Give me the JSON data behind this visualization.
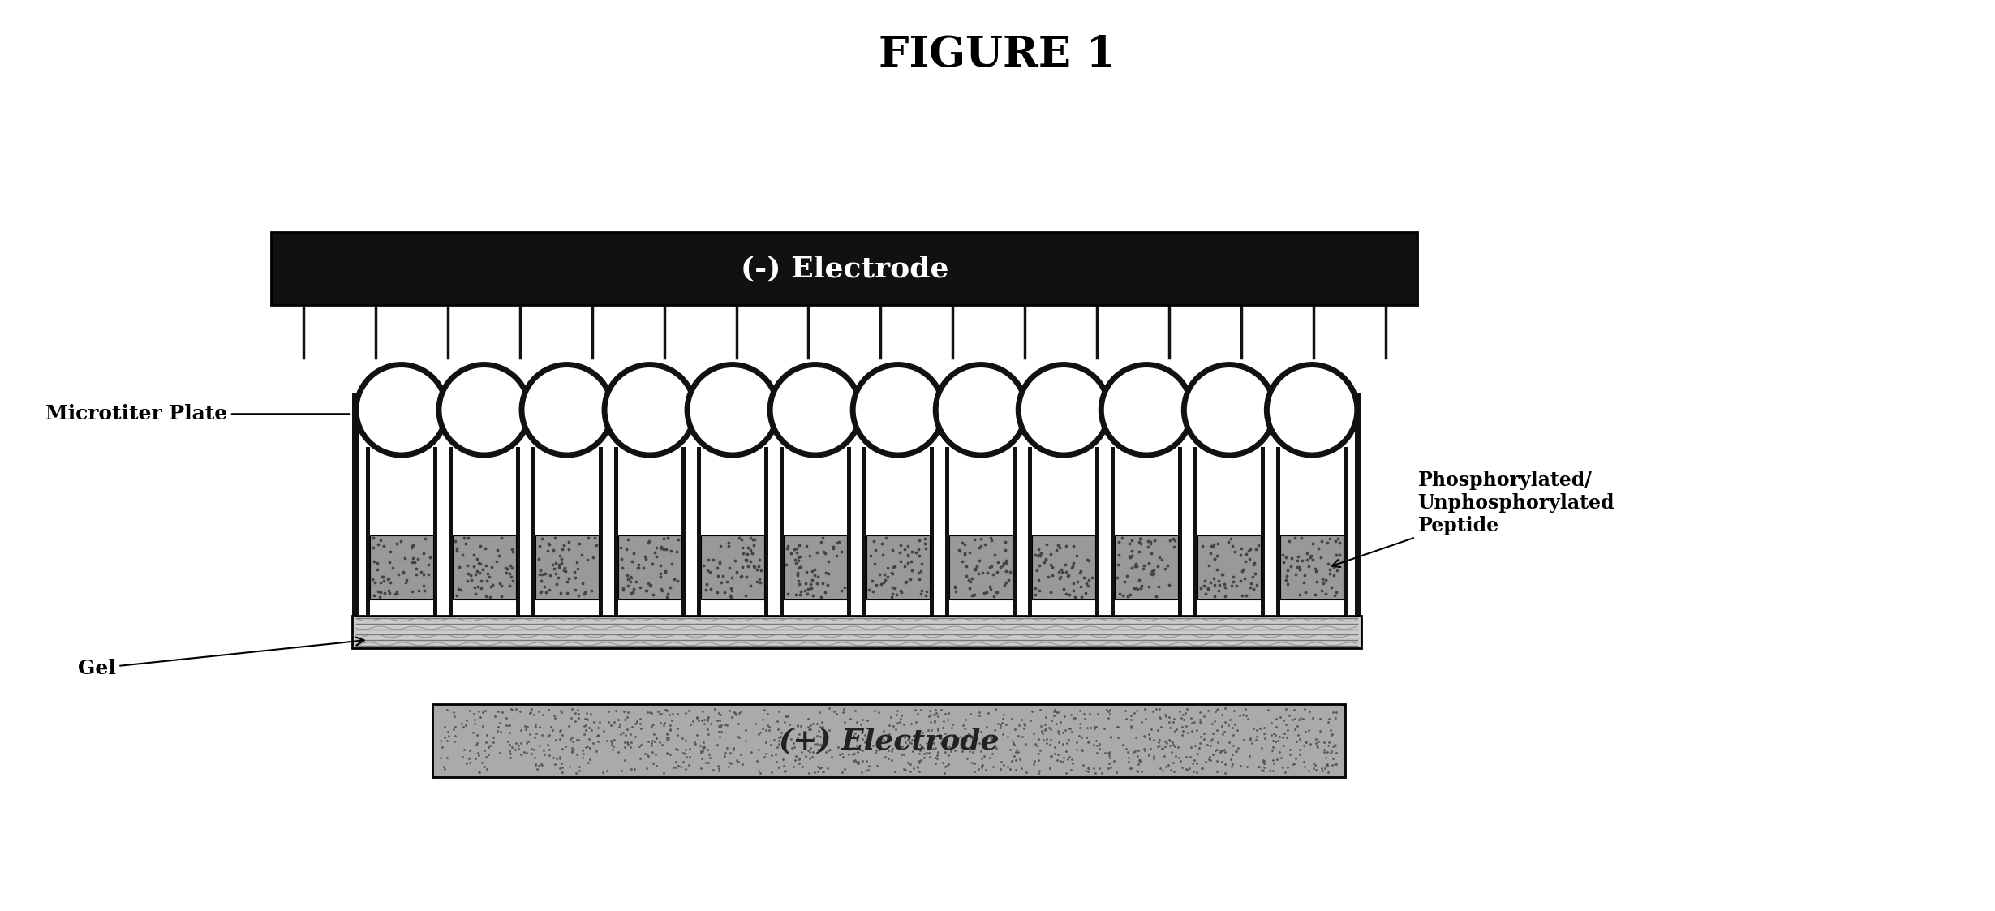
{
  "title": "FIGURE 1",
  "title_fontsize": 38,
  "title_fontweight": "bold",
  "bg_color": "#ffffff",
  "neg_electrode_label": "(-) Electrode",
  "pos_electrode_label": "(+) Electrode",
  "microtiter_label": "Microtiter Plate",
  "gel_label": "Gel",
  "phospho_label": "Phosphorylated/\nUnphosphorylated\nPeptide",
  "neg_electrode_color": "#111111",
  "pos_electrode_color": "#aaaaaa",
  "neg_electrode_text_color": "#ffffff",
  "pos_electrode_text_color": "#dddddd",
  "electrode_label_fontsize": 26,
  "electrode_label_fontweight": "bold",
  "annotation_fontsize": 18,
  "num_wells": 12,
  "fig_w": 24.59,
  "fig_h": 11.23,
  "dpi": 100,
  "plate_wall_color": "#111111",
  "gel_color": "#bbbbbb",
  "sample_color": "#999999",
  "connector_color": "#111111",
  "pin_count": 16
}
